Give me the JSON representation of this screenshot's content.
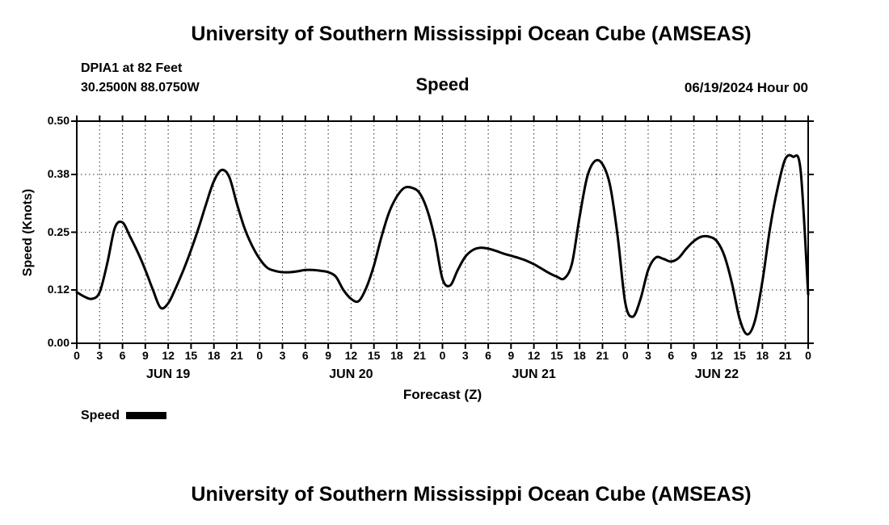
{
  "header": {
    "title": "University of Southern Mississippi Ocean Cube (AMSEAS)",
    "station": "DPIA1 at 82 Feet",
    "coordinates": "30.2500N  88.0750W",
    "variable": "Speed",
    "run_date": "06/19/2024 Hour 00"
  },
  "footer": {
    "title": "University of Southern Mississippi Ocean Cube (AMSEAS)"
  },
  "legend": {
    "label": "Speed"
  },
  "chart_data": {
    "type": "line",
    "title": "Speed",
    "xlabel": "Forecast (Z)",
    "ylabel": "Speed (Knots)",
    "xlim_hours": [
      0,
      96
    ],
    "ylim": [
      0,
      0.5
    ],
    "grid": "dashed",
    "line_color": "#000000",
    "y_ticks": [
      {
        "label": "0.00",
        "value": 0.0
      },
      {
        "label": "0.12",
        "value": 0.12
      },
      {
        "label": "0.25",
        "value": 0.25
      },
      {
        "label": "0.38",
        "value": 0.38
      },
      {
        "label": "0.50",
        "value": 0.5
      }
    ],
    "grid_y": [
      0.12,
      0.25,
      0.38
    ],
    "x_tick_hours": [
      0,
      3,
      6,
      9,
      12,
      15,
      18,
      21,
      24,
      27,
      30,
      33,
      36,
      39,
      42,
      45,
      48,
      51,
      54,
      57,
      60,
      63,
      66,
      69,
      72,
      75,
      78,
      81,
      84,
      87,
      90,
      93,
      96
    ],
    "x_tick_labels": [
      "0",
      "3",
      "6",
      "9",
      "12",
      "15",
      "18",
      "21",
      "0",
      "3",
      "6",
      "9",
      "12",
      "15",
      "18",
      "21",
      "0",
      "3",
      "6",
      "9",
      "12",
      "15",
      "18",
      "21",
      "0",
      "3",
      "6",
      "9",
      "12",
      "15",
      "18",
      "21",
      "0"
    ],
    "day_labels": [
      {
        "label": "JUN 19",
        "center_hour": 12
      },
      {
        "label": "JUN 20",
        "center_hour": 36
      },
      {
        "label": "JUN 21",
        "center_hour": 60
      },
      {
        "label": "JUN 22",
        "center_hour": 84
      }
    ],
    "series": [
      {
        "name": "Speed",
        "color": "#000000",
        "hours": [
          0,
          1,
          2,
          3,
          4,
          5,
          6,
          7,
          8,
          9,
          10,
          11,
          12,
          13,
          14,
          15,
          16,
          17,
          18,
          19,
          20,
          21,
          22,
          23,
          24,
          25,
          26,
          27,
          28,
          29,
          30,
          31,
          32,
          33,
          34,
          35,
          36,
          37,
          38,
          39,
          40,
          41,
          42,
          43,
          44,
          45,
          46,
          47,
          48,
          49,
          50,
          51,
          52,
          53,
          54,
          55,
          56,
          57,
          58,
          59,
          60,
          61,
          62,
          63,
          64,
          65,
          66,
          67,
          68,
          69,
          70,
          71,
          72,
          73,
          74,
          75,
          76,
          77,
          78,
          79,
          80,
          81,
          82,
          83,
          84,
          85,
          86,
          87,
          88,
          89,
          90,
          91,
          92,
          93,
          94,
          95,
          96
        ],
        "values": [
          0.115,
          0.105,
          0.1,
          0.115,
          0.18,
          0.26,
          0.272,
          0.24,
          0.205,
          0.165,
          0.12,
          0.08,
          0.09,
          0.125,
          0.165,
          0.21,
          0.26,
          0.315,
          0.365,
          0.39,
          0.375,
          0.315,
          0.26,
          0.22,
          0.19,
          0.17,
          0.163,
          0.16,
          0.16,
          0.162,
          0.165,
          0.165,
          0.163,
          0.16,
          0.15,
          0.12,
          0.1,
          0.095,
          0.125,
          0.175,
          0.24,
          0.295,
          0.33,
          0.35,
          0.35,
          0.338,
          0.3,
          0.235,
          0.145,
          0.13,
          0.165,
          0.195,
          0.21,
          0.215,
          0.213,
          0.208,
          0.202,
          0.197,
          0.192,
          0.186,
          0.178,
          0.168,
          0.158,
          0.15,
          0.146,
          0.18,
          0.285,
          0.375,
          0.41,
          0.403,
          0.355,
          0.24,
          0.09,
          0.06,
          0.1,
          0.165,
          0.193,
          0.19,
          0.184,
          0.192,
          0.213,
          0.23,
          0.24,
          0.24,
          0.23,
          0.197,
          0.135,
          0.055,
          0.02,
          0.05,
          0.14,
          0.26,
          0.35,
          0.415,
          0.42,
          0.39,
          0.11
        ]
      }
    ]
  }
}
